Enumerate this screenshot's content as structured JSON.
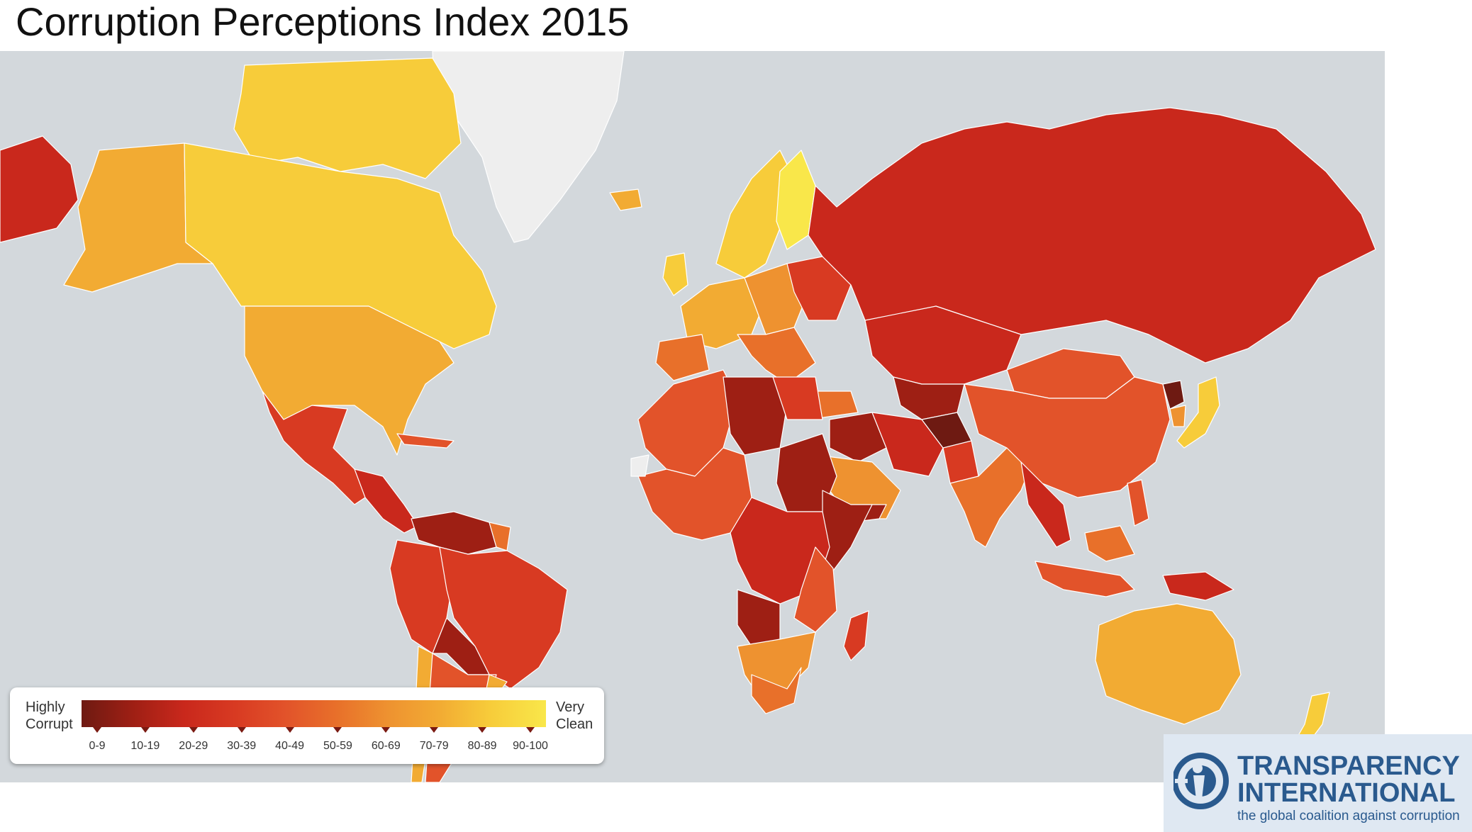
{
  "title": "Corruption Perceptions Index 2015",
  "legend": {
    "left_label_lines": [
      "Highly",
      "Corrupt"
    ],
    "right_label_lines": [
      "Very",
      "Clean"
    ],
    "ranges": [
      "0-9",
      "10-19",
      "20-29",
      "30-39",
      "40-49",
      "50-59",
      "60-69",
      "70-79",
      "80-89",
      "90-100"
    ],
    "colors": [
      "#6e1a12",
      "#9e1f14",
      "#c9281c",
      "#d83a22",
      "#e2532a",
      "#e8702a",
      "#ee9230",
      "#f2ab33",
      "#f7cc3a",
      "#f9e74a"
    ]
  },
  "colors": {
    "ocean": "#d3d8dc",
    "no_data": "#eeeeee"
  },
  "logo": {
    "name_line1": "TRANSPARENCY",
    "name_line2": "INTERNATIONAL",
    "tagline": "the global coalition against corruption"
  }
}
